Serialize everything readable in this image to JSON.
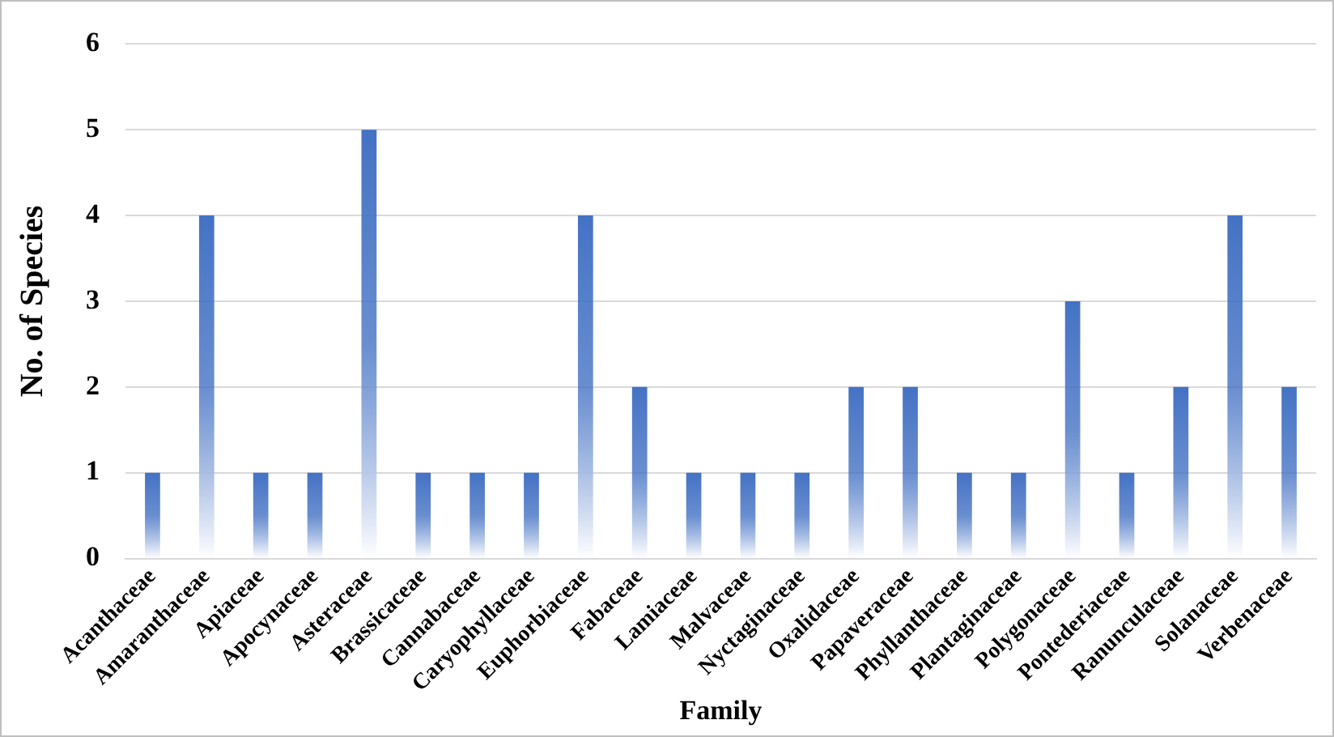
{
  "chart_data": {
    "type": "bar",
    "xlabel": "Family",
    "ylabel": "No. of Species",
    "categories": [
      "Acanthaceae",
      "Amaranthaceae",
      "Apiaceae",
      "Apocynaceae",
      "Asteraceae",
      "Brassicaceae",
      "Cannabaceae",
      "Caryophyllaceae",
      "Euphorbiaceae",
      "Fabaceae",
      "Lamiaceae",
      "Malvaceae",
      "Nyctaginaceae",
      "Oxalidaceae",
      "Papaveraceae",
      "Phyllanthaceae",
      "Plantaginaceae",
      "Polygonaceae",
      "Pontederiaceae",
      "Ranunculaceae",
      "Solanaceae",
      "Verbenaceae"
    ],
    "values": [
      1,
      4,
      1,
      1,
      5,
      1,
      1,
      1,
      4,
      2,
      1,
      1,
      1,
      2,
      2,
      1,
      1,
      3,
      1,
      2,
      4,
      2
    ],
    "color": "#4472c4",
    "ylim": [
      0,
      6
    ],
    "yticks": [
      0,
      1,
      2,
      3,
      4,
      5,
      6
    ],
    "grid": "y",
    "legend": false
  }
}
